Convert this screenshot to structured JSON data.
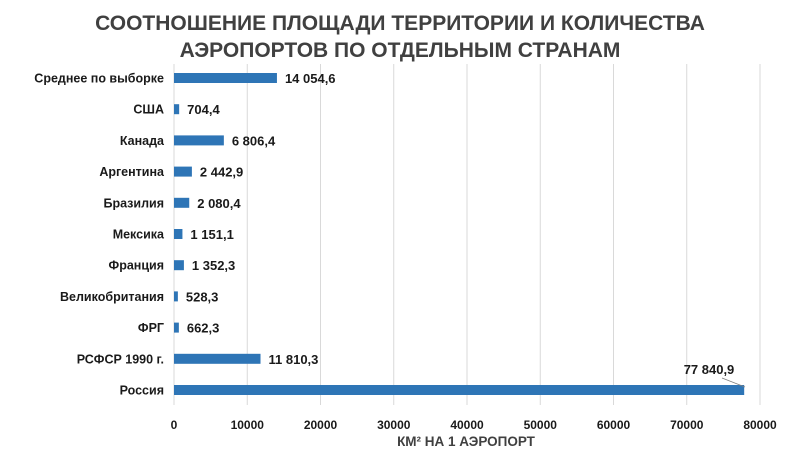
{
  "chart_data": {
    "type": "bar",
    "orientation": "horizontal",
    "title_lines": [
      "СООТНОШЕНИЕ ПЛОЩАДИ ТЕРРИТОРИИ И КОЛИЧЕСТВА",
      "АЭРОПОРТОВ ПО ОТДЕЛЬНЫМ СТРАНАМ"
    ],
    "xlabel": "КМ² НА 1 АЭРОПОРТ",
    "ylabel": "",
    "xlim": [
      0,
      80000
    ],
    "x_ticks": [
      0,
      10000,
      20000,
      30000,
      40000,
      50000,
      60000,
      70000,
      80000
    ],
    "x_tick_labels": [
      "0",
      "10000",
      "20000",
      "30000",
      "40000",
      "50000",
      "60000",
      "70000",
      "80000"
    ],
    "grid": "vertical",
    "legend": "none",
    "bar_color": "#2e75b6",
    "categories": [
      "Среднее по выборке",
      "США",
      "Канада",
      "Аргентина",
      "Бразилия",
      "Мексика",
      "Франция",
      "Великобритания",
      "ФРГ",
      "РСФСР 1990 г.",
      "Россия"
    ],
    "values": [
      14054.6,
      704.4,
      6806.4,
      2442.9,
      2080.4,
      1151.1,
      1352.3,
      528.3,
      662.3,
      11810.3,
      77840.9
    ],
    "value_labels": [
      "14 054,6",
      "704,4",
      "6 806,4",
      "2 442,9",
      "2 080,4",
      "1 151,1",
      "1 352,3",
      "528,3",
      "662,3",
      "11 810,3",
      "77 840,9"
    ]
  }
}
